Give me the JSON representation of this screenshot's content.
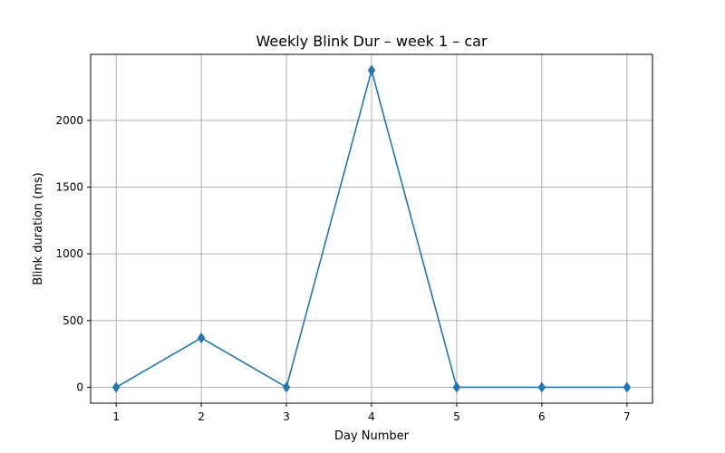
{
  "chart_data": {
    "type": "line",
    "title": "Weekly Blink Dur – week 1 – car",
    "xlabel": "Day Number",
    "ylabel": "Blink duration (ms)",
    "x": [
      1,
      2,
      3,
      4,
      5,
      6,
      7
    ],
    "xlim": [
      0.7,
      7.3
    ],
    "ylim": [
      -119,
      2495
    ],
    "x_ticks": [
      1,
      2,
      3,
      4,
      5,
      6,
      7
    ],
    "y_ticks": [
      0,
      500,
      1000,
      1500,
      2000
    ],
    "grid": true,
    "series": [
      {
        "values": [
          0,
          370,
          0,
          2375,
          0,
          0,
          0
        ],
        "color": "#1f77b4",
        "marker": "diamond"
      }
    ]
  }
}
